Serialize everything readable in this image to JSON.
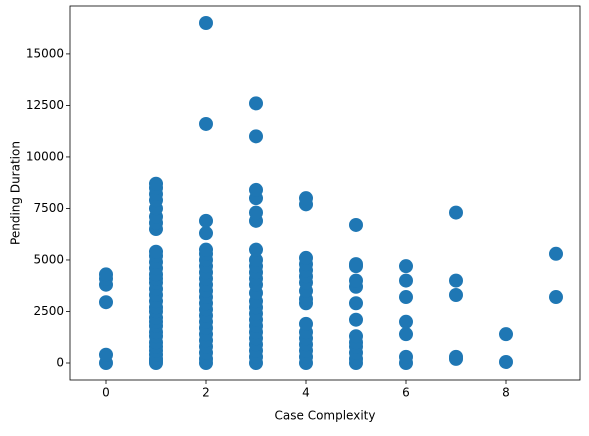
{
  "chart_data": {
    "type": "scatter",
    "xlabel": "Case Complexity",
    "ylabel": "Pending Duration",
    "color": "#1f77b4",
    "x": [
      0,
      0,
      0,
      0,
      0,
      0,
      1,
      1,
      1,
      1,
      1,
      1,
      1,
      1,
      1,
      1,
      1,
      1,
      1,
      1,
      1,
      1,
      1,
      1,
      1,
      1,
      1,
      1,
      1,
      1,
      1,
      1,
      1,
      1,
      1,
      1,
      1,
      1,
      2,
      2,
      2,
      2,
      2,
      2,
      2,
      2,
      2,
      2,
      2,
      2,
      2,
      2,
      2,
      2,
      2,
      2,
      2,
      2,
      2,
      2,
      2,
      2,
      3,
      3,
      3,
      3,
      3,
      3,
      3,
      3,
      3,
      3,
      3,
      3,
      3,
      3,
      3,
      3,
      3,
      3,
      3,
      3,
      3,
      3,
      3,
      3,
      4,
      4,
      4,
      4,
      4,
      4,
      4,
      4,
      4,
      4,
      4,
      4,
      4,
      4,
      4,
      4,
      4,
      5,
      5,
      5,
      5,
      5,
      5,
      5,
      5,
      5,
      5,
      5,
      5,
      5,
      6,
      6,
      6,
      6,
      6,
      6,
      6,
      7,
      7,
      7,
      7,
      7,
      8,
      8,
      9,
      9
    ],
    "values": [
      0,
      400,
      2950,
      3800,
      4100,
      4300,
      0,
      100,
      200,
      400,
      600,
      800,
      1000,
      1300,
      1500,
      1800,
      2000,
      2200,
      2500,
      2700,
      3000,
      3300,
      3600,
      3900,
      4100,
      4300,
      4600,
      4900,
      5200,
      5400,
      6500,
      6800,
      7100,
      7500,
      7900,
      8200,
      8500,
      8700,
      0,
      200,
      500,
      800,
      1100,
      1400,
      1700,
      2000,
      2300,
      2600,
      2900,
      3200,
      3500,
      3800,
      4100,
      4400,
      4700,
      5000,
      5300,
      5500,
      6300,
      6900,
      11600,
      16500,
      0,
      300,
      600,
      900,
      1200,
      1500,
      1800,
      2100,
      2400,
      2700,
      3000,
      3400,
      3800,
      4100,
      4400,
      4700,
      5000,
      5500,
      6900,
      7300,
      8000,
      8400,
      11000,
      12600,
      0,
      300,
      600,
      900,
      1200,
      1500,
      1900,
      2900,
      3100,
      3500,
      3900,
      4200,
      4500,
      4800,
      5100,
      7700,
      8000,
      0,
      200,
      500,
      800,
      1000,
      1300,
      2100,
      2900,
      3700,
      4000,
      4700,
      4800,
      6700,
      0,
      300,
      1400,
      2000,
      3200,
      4000,
      4700,
      200,
      300,
      3300,
      4000,
      7300,
      50,
      1400,
      3200,
      5300
    ],
    "xlim": [
      -0.72,
      9.48
    ],
    "ylim": [
      -825,
      17325
    ],
    "xticks": [
      0,
      2,
      4,
      6,
      8
    ],
    "yticks": [
      0,
      2500,
      5000,
      7500,
      10000,
      12500,
      15000
    ]
  }
}
